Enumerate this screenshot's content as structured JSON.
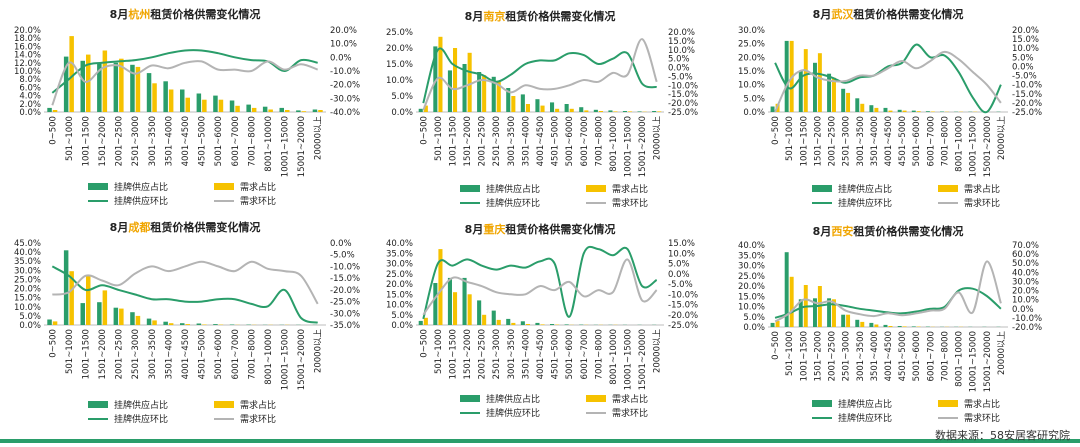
{
  "colors": {
    "supply_bar": "#2a9d6a",
    "demand_bar": "#f6c200",
    "supply_line": "#2a9d6a",
    "demand_line": "#b4b4b4",
    "city_highlight": "#f0a500"
  },
  "legend": {
    "supply_share": "挂牌供应占比",
    "demand_share": "需求占比",
    "supply_mom": "挂牌供应环比",
    "demand_mom": "需求环比"
  },
  "source": "数据来源：58安居客研究院",
  "chart_data": [
    {
      "type": "bar+line",
      "title_prefix": "8月",
      "city": "杭州",
      "title_suffix": "租赁价格供需变化情况",
      "categories": [
        "0~500",
        "501~1000",
        "1001~1500",
        "1501~2000",
        "2001~2500",
        "2501~3000",
        "3001~3500",
        "3501~4000",
        "4001~4500",
        "4501~5000",
        "5001~6000",
        "6001~7000",
        "7001~8000",
        "8001~10000",
        "10001~15000",
        "15001~20000",
        "20000以上"
      ],
      "ylim_left": [
        0,
        20
      ],
      "yticks_left": [
        "0.0%",
        "2.0%",
        "4.0%",
        "6.0%",
        "8.0%",
        "10.0%",
        "12.0%",
        "14.0%",
        "16.0%",
        "18.0%",
        "20.0%"
      ],
      "ylim_right": [
        -40,
        20
      ],
      "yticks_right": [
        "-40.0%",
        "-30.0%",
        "-20.0%",
        "-10.0%",
        "0.0%",
        "10.0%",
        "20.0%"
      ],
      "series": [
        {
          "name": "挂牌供应占比",
          "kind": "bar",
          "values": [
            1.0,
            13.5,
            12.5,
            12.0,
            12.0,
            11.5,
            9.5,
            7.5,
            5.5,
            4.5,
            4.0,
            2.8,
            1.8,
            1.3,
            1.0,
            0.4,
            0.6
          ]
        },
        {
          "name": "需求占比",
          "kind": "bar",
          "values": [
            0.5,
            18.5,
            14.0,
            15.0,
            13.0,
            11.0,
            7.0,
            5.5,
            3.5,
            3.0,
            3.0,
            1.5,
            1.0,
            0.6,
            0.5,
            0.2,
            0.5
          ]
        },
        {
          "name": "挂牌供应环比",
          "kind": "line",
          "axis": "right",
          "values": [
            -26,
            -16,
            -6,
            -4,
            -3,
            -2,
            0,
            3,
            5,
            5,
            3,
            0,
            -2,
            -3,
            -10,
            -2,
            -4
          ]
        },
        {
          "name": "需求环比",
          "kind": "line",
          "axis": "right",
          "values": [
            -35,
            -4,
            -18,
            -8,
            -6,
            -12,
            -6,
            -8,
            -4,
            -3,
            -9,
            -9,
            -10,
            -3,
            -9,
            -5,
            -9
          ]
        }
      ]
    },
    {
      "type": "bar+line",
      "title_prefix": "8月",
      "city": "南京",
      "title_suffix": "租赁价格供需变化情况",
      "categories": [
        "0~500",
        "501~1000",
        "1001~1500",
        "1501~2000",
        "2001~2500",
        "2501~3000",
        "3001~3500",
        "3501~4000",
        "4001~4500",
        "4501~5000",
        "5001~6000",
        "6001~7000",
        "7001~8000",
        "8001~10000",
        "10001~15000",
        "15001~20000",
        "20000以上"
      ],
      "ylim_left": [
        0,
        25
      ],
      "yticks_left": [
        "0.0%",
        "5.0%",
        "10.0%",
        "15.0%",
        "20.0%",
        "25.0%"
      ],
      "ylim_right": [
        -25,
        20
      ],
      "yticks_right": [
        "-25.0%",
        "-20.0%",
        "-15.0%",
        "-10.0%",
        "-5.0%",
        "0.0%",
        "5.0%",
        "10.0%",
        "15.0%",
        "20.0%"
      ],
      "series": [
        {
          "name": "挂牌供应占比",
          "kind": "bar",
          "values": [
            1.0,
            20.5,
            13.0,
            15.0,
            12.5,
            11.0,
            7.5,
            5.5,
            4.0,
            3.0,
            2.5,
            1.5,
            0.7,
            0.5,
            0.3,
            0.2,
            0.3
          ]
        },
        {
          "name": "需求占比",
          "kind": "bar",
          "values": [
            2.0,
            23.5,
            20.0,
            18.5,
            11.5,
            9.5,
            5.0,
            2.5,
            2.0,
            1.0,
            1.0,
            0.5,
            0.3,
            0.2,
            0.2,
            0.1,
            0.2
          ]
        },
        {
          "name": "挂牌供应环比",
          "kind": "line",
          "axis": "right",
          "values": [
            -20,
            10,
            2,
            -2,
            -4,
            -8,
            -4,
            2,
            4,
            4,
            8,
            7,
            2,
            5,
            8,
            -9,
            -11
          ]
        },
        {
          "name": "需求环比",
          "kind": "line",
          "axis": "right",
          "values": [
            -24,
            -6,
            -12,
            -10,
            -7,
            -9,
            -14,
            -10,
            -12,
            -12,
            -10,
            -7,
            -8,
            -3,
            -4,
            16,
            -8
          ]
        }
      ]
    },
    {
      "type": "bar+line",
      "title_prefix": "8月",
      "city": "武汉",
      "title_suffix": "租赁价格供需变化情况",
      "categories": [
        "0~500",
        "501~1000",
        "1001~1500",
        "1501~2000",
        "2001~2500",
        "2501~3000",
        "3001~3500",
        "3501~4000",
        "4001~4500",
        "4501~5000",
        "5001~6000",
        "6001~7000",
        "7001~8000",
        "8001~10000",
        "10001~15000",
        "15001~20000",
        "20000以上"
      ],
      "ylim_left": [
        0,
        30
      ],
      "yticks_left": [
        "0.0%",
        "5.0%",
        "10.0%",
        "15.0%",
        "20.0%",
        "25.0%",
        "30.0%"
      ],
      "ylim_right": [
        -25,
        20
      ],
      "yticks_right": [
        "-25.0%",
        "-20.0%",
        "-15.0%",
        "-10.0%",
        "-5.0%",
        "0.0%",
        "5.0%",
        "10.0%",
        "15.0%",
        "20.0%"
      ],
      "series": [
        {
          "name": "挂牌供应占比",
          "kind": "bar",
          "values": [
            2.0,
            26.0,
            15.0,
            18.0,
            14.0,
            8.5,
            5.0,
            2.5,
            1.5,
            0.8,
            0.5,
            0.3,
            0.2,
            0.1,
            0.1,
            0.1,
            0.1
          ]
        },
        {
          "name": "需求占比",
          "kind": "bar",
          "values": [
            3.0,
            26.0,
            23.0,
            21.5,
            12.5,
            7.0,
            3.0,
            1.5,
            0.5,
            0.5,
            0.3,
            0.2,
            0.1,
            0.1,
            0.1,
            0.0,
            0.0
          ]
        },
        {
          "name": "挂牌供应环比",
          "kind": "line",
          "axis": "right",
          "values": [
            2,
            -12,
            -5,
            -4,
            -6,
            -9,
            -6,
            -5,
            0,
            2,
            12,
            5,
            6,
            -3,
            -17,
            -25,
            -10
          ]
        },
        {
          "name": "需求环比",
          "kind": "line",
          "axis": "right",
          "values": [
            -25,
            -8,
            -2,
            -6,
            -8,
            -8,
            -5,
            -5,
            -1,
            3,
            -1,
            3,
            8,
            4,
            -3,
            -10,
            -20
          ]
        }
      ]
    },
    {
      "type": "bar+line",
      "title_prefix": "8月",
      "city": "成都",
      "title_suffix": "租赁价格供需变化情况",
      "categories": [
        "0~500",
        "501~1000",
        "1001~1500",
        "1501~2000",
        "2001~2500",
        "2501~3000",
        "3001~3500",
        "3501~4000",
        "4001~4500",
        "4501~5000",
        "5001~6000",
        "6001~7000",
        "7001~8000",
        "8001~10000",
        "10001~15000",
        "15001~20000",
        "20000以上"
      ],
      "ylim_left": [
        0,
        45
      ],
      "yticks_left": [
        "0.0%",
        "5.0%",
        "10.0%",
        "15.0%",
        "20.0%",
        "25.0%",
        "30.0%",
        "35.0%",
        "40.0%",
        "45.0%"
      ],
      "ylim_right": [
        -35,
        0
      ],
      "yticks_right": [
        "-35.0%",
        "-30.0%",
        "-25.0%",
        "-20.0%",
        "-15.0%",
        "-10.0%",
        "-5.0%",
        "0.0%"
      ],
      "series": [
        {
          "name": "挂牌供应占比",
          "kind": "bar",
          "values": [
            3.0,
            41.0,
            12.0,
            12.5,
            9.5,
            7.0,
            3.5,
            1.8,
            1.0,
            0.8,
            0.5,
            0.3,
            0.2,
            0.1,
            0.1,
            0.1,
            0.1
          ]
        },
        {
          "name": "需求占比",
          "kind": "bar",
          "values": [
            2.0,
            29.5,
            27.0,
            19.0,
            9.0,
            5.0,
            2.5,
            1.0,
            0.5,
            0.3,
            0.2,
            0.1,
            0.1,
            0.1,
            0.1,
            0.0,
            0.0
          ]
        },
        {
          "name": "挂牌供应环比",
          "kind": "line",
          "axis": "right",
          "values": [
            -10,
            -14,
            -20,
            -18,
            -20,
            -22,
            -24,
            -24,
            -25,
            -25,
            -24,
            -24,
            -26,
            -27,
            -20,
            -32,
            -34
          ]
        },
        {
          "name": "需求环比",
          "kind": "line",
          "axis": "right",
          "values": [
            -22,
            -21,
            -14,
            -16,
            -18,
            -13,
            -10,
            -12,
            -10,
            -8,
            -10,
            -12,
            -8,
            -11,
            -12,
            -14,
            -26
          ]
        }
      ]
    },
    {
      "type": "bar+line",
      "title_prefix": "8月",
      "city": "重庆",
      "title_suffix": "租赁价格供需变化情况",
      "categories": [
        "0~500",
        "501~1000",
        "1001~1500",
        "1501~2000",
        "2001~2500",
        "2501~3000",
        "3001~3500",
        "3501~4000",
        "4001~4500",
        "4501~5000",
        "5001~6000",
        "6001~7000",
        "7001~8000",
        "8001~10000",
        "10001~15000",
        "15001~20000",
        "20000以上"
      ],
      "ylim_left": [
        0,
        40
      ],
      "yticks_left": [
        "0.0%",
        "5.0%",
        "10.0%",
        "15.0%",
        "20.0%",
        "25.0%",
        "30.0%",
        "35.0%",
        "40.0%"
      ],
      "ylim_right": [
        -25,
        15
      ],
      "yticks_right": [
        "-25.0%",
        "-20.0%",
        "-15.0%",
        "-10.0%",
        "-5.0%",
        "0.0%",
        "5.0%",
        "10.0%",
        "15.0%"
      ],
      "series": [
        {
          "name": "挂牌供应占比",
          "kind": "bar",
          "values": [
            2.0,
            20.5,
            23.0,
            23.0,
            12.0,
            7.0,
            3.0,
            1.8,
            1.0,
            0.5,
            0.3,
            0.2,
            0.1,
            0.1,
            0.1,
            0.1,
            0.1
          ]
        },
        {
          "name": "需求占比",
          "kind": "bar",
          "values": [
            3.5,
            37.0,
            16.0,
            15.0,
            5.0,
            2.5,
            1.0,
            0.5,
            0.3,
            0.2,
            0.1,
            0.1,
            0.1,
            0.1,
            0.0,
            0.0,
            0.0
          ]
        },
        {
          "name": "挂牌供应环比",
          "kind": "line",
          "axis": "right",
          "values": [
            -22,
            5,
            4,
            7,
            4,
            2,
            4,
            3,
            6,
            5,
            -21,
            10,
            12,
            9,
            12,
            -6,
            -3
          ]
        },
        {
          "name": "需求环比",
          "kind": "line",
          "axis": "right",
          "values": [
            -20,
            -10,
            -2,
            -4,
            -6,
            -9,
            -10,
            -10,
            -6,
            -8,
            -4,
            -11,
            -8,
            -9,
            7,
            -13,
            -8
          ]
        }
      ]
    },
    {
      "type": "bar+line",
      "title_prefix": "8月",
      "city": "西安",
      "title_suffix": "租赁价格供需变化情况",
      "categories": [
        "0~500",
        "501~1000",
        "1001~1500",
        "1501~2000",
        "2001~2500",
        "2501~3000",
        "3001~3500",
        "3501~4000",
        "4001~4500",
        "4501~5000",
        "5001~6000",
        "6001~7000",
        "7001~8000",
        "8001~10000",
        "10001~15000",
        "15001~20000",
        "20000以上"
      ],
      "ylim_left": [
        0,
        40
      ],
      "yticks_left": [
        "0.0%",
        "5.0%",
        "10.0%",
        "15.0%",
        "20.0%",
        "25.0%",
        "30.0%",
        "35.0%",
        "40.0%"
      ],
      "ylim_right": [
        -20,
        70
      ],
      "yticks_right": [
        "-20.0%",
        "-10.0%",
        "0.0%",
        "10.0%",
        "20.0%",
        "30.0%",
        "40.0%",
        "50.0%",
        "60.0%",
        "70.0%"
      ],
      "series": [
        {
          "name": "挂牌供应占比",
          "kind": "bar",
          "values": [
            2.0,
            36.5,
            13.5,
            14.0,
            14.0,
            6.0,
            3.5,
            2.0,
            1.0,
            0.5,
            0.3,
            0.2,
            0.1,
            0.1,
            0.1,
            0.1,
            0.1
          ]
        },
        {
          "name": "需求占比",
          "kind": "bar",
          "values": [
            3.0,
            24.5,
            20.5,
            20.0,
            13.5,
            6.0,
            2.5,
            1.2,
            0.5,
            0.3,
            0.2,
            0.1,
            0.1,
            0.1,
            0.0,
            0.0,
            0.0
          ]
        },
        {
          "name": "挂牌供应环比",
          "kind": "line",
          "axis": "right",
          "values": [
            -10,
            -5,
            2,
            3,
            5,
            3,
            0,
            -2,
            -4,
            -5,
            -3,
            0,
            2,
            20,
            22,
            14,
            0
          ]
        },
        {
          "name": "需求环比",
          "kind": "line",
          "axis": "right",
          "values": [
            -14,
            -5,
            10,
            6,
            8,
            -2,
            -6,
            -8,
            -5,
            -7,
            -5,
            -2,
            0,
            18,
            -4,
            52,
            6
          ]
        }
      ]
    }
  ]
}
